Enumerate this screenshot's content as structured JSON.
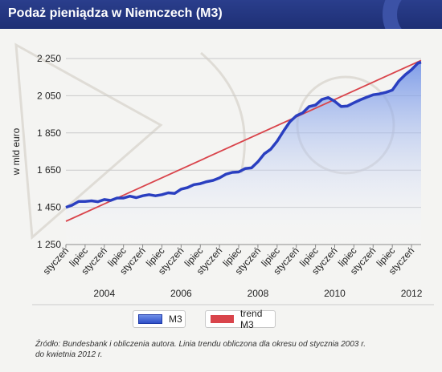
{
  "header": {
    "title": "Podaż pieniądza w Niemczech (M3)"
  },
  "colors": {
    "header_bg": "#25378a",
    "m3_line": "#2a3fc0",
    "m3_fill": "#6b8ee6",
    "trend_line": "#d9444b"
  },
  "chart_data": {
    "type": "line",
    "title": "Podaż pieniądza w Niemczech (M3)",
    "ylabel": "w mld euro",
    "ylim": [
      1250,
      2250
    ],
    "yticks": [
      1250,
      1450,
      1650,
      1850,
      2050,
      2250
    ],
    "ytick_labels": [
      "1 250",
      "1 450",
      "1 650",
      "1 850",
      "2 050",
      "2 250"
    ],
    "xlim": [
      "2003-01",
      "2012-04"
    ],
    "xticks": [
      {
        "x": "2003-01",
        "label": "styczeń"
      },
      {
        "x": "2003-07",
        "label": "lipiec"
      },
      {
        "x": "2004-01",
        "label": "styczeń"
      },
      {
        "x": "2004-07",
        "label": "lipiec"
      },
      {
        "x": "2005-01",
        "label": "styczeń"
      },
      {
        "x": "2005-07",
        "label": "lipiec"
      },
      {
        "x": "2006-01",
        "label": "styczeń"
      },
      {
        "x": "2006-07",
        "label": "lipiec"
      },
      {
        "x": "2007-01",
        "label": "styczeń"
      },
      {
        "x": "2007-07",
        "label": "lipiec"
      },
      {
        "x": "2008-01",
        "label": "styczeń"
      },
      {
        "x": "2008-07",
        "label": "lipiec"
      },
      {
        "x": "2009-01",
        "label": "styczeń"
      },
      {
        "x": "2009-07",
        "label": "lipiec"
      },
      {
        "x": "2010-01",
        "label": "styczeń"
      },
      {
        "x": "2010-07",
        "label": "lipiec"
      },
      {
        "x": "2011-01",
        "label": "styczeń"
      },
      {
        "x": "2011-07",
        "label": "lipiec"
      },
      {
        "x": "2012-01",
        "label": "styczeń"
      }
    ],
    "year_labels": [
      {
        "x": "2004-01",
        "label": "2004"
      },
      {
        "x": "2006-01",
        "label": "2006"
      },
      {
        "x": "2008-01",
        "label": "2008"
      },
      {
        "x": "2010-01",
        "label": "2010"
      },
      {
        "x": "2012-01",
        "label": "2012"
      }
    ],
    "grid": true,
    "legend_position": "bottom",
    "series": [
      {
        "name": "M3",
        "style": "area-line",
        "points": [
          [
            "2003-01",
            1450
          ],
          [
            "2003-03",
            1462
          ],
          [
            "2003-05",
            1482
          ],
          [
            "2003-07",
            1482
          ],
          [
            "2003-09",
            1485
          ],
          [
            "2003-11",
            1480
          ],
          [
            "2004-01",
            1492
          ],
          [
            "2004-03",
            1487
          ],
          [
            "2004-05",
            1500
          ],
          [
            "2004-07",
            1500
          ],
          [
            "2004-09",
            1510
          ],
          [
            "2004-11",
            1502
          ],
          [
            "2005-01",
            1512
          ],
          [
            "2005-03",
            1518
          ],
          [
            "2005-05",
            1512
          ],
          [
            "2005-07",
            1518
          ],
          [
            "2005-09",
            1528
          ],
          [
            "2005-11",
            1525
          ],
          [
            "2006-01",
            1548
          ],
          [
            "2006-03",
            1556
          ],
          [
            "2006-05",
            1572
          ],
          [
            "2006-07",
            1577
          ],
          [
            "2006-09",
            1588
          ],
          [
            "2006-11",
            1595
          ],
          [
            "2007-01",
            1608
          ],
          [
            "2007-03",
            1628
          ],
          [
            "2007-05",
            1638
          ],
          [
            "2007-07",
            1640
          ],
          [
            "2007-09",
            1658
          ],
          [
            "2007-11",
            1662
          ],
          [
            "2008-01",
            1695
          ],
          [
            "2008-03",
            1738
          ],
          [
            "2008-05",
            1762
          ],
          [
            "2008-07",
            1805
          ],
          [
            "2008-09",
            1860
          ],
          [
            "2008-11",
            1910
          ],
          [
            "2009-01",
            1942
          ],
          [
            "2009-03",
            1958
          ],
          [
            "2009-05",
            1992
          ],
          [
            "2009-07",
            2000
          ],
          [
            "2009-09",
            2030
          ],
          [
            "2009-11",
            2040
          ],
          [
            "2010-01",
            2020
          ],
          [
            "2010-03",
            1992
          ],
          [
            "2010-05",
            1995
          ],
          [
            "2010-07",
            2012
          ],
          [
            "2010-09",
            2028
          ],
          [
            "2010-11",
            2042
          ],
          [
            "2011-01",
            2055
          ],
          [
            "2011-03",
            2060
          ],
          [
            "2011-05",
            2068
          ],
          [
            "2011-07",
            2080
          ],
          [
            "2011-09",
            2128
          ],
          [
            "2011-11",
            2162
          ],
          [
            "2012-01",
            2190
          ],
          [
            "2012-03",
            2225
          ],
          [
            "2012-04",
            2230
          ]
        ]
      },
      {
        "name": "trend M3",
        "style": "line",
        "points": [
          [
            "2003-01",
            1375
          ],
          [
            "2012-04",
            2240
          ]
        ]
      }
    ]
  },
  "legend": {
    "m3_label": "M3",
    "trend_label": "trend M3"
  },
  "source": {
    "line1": "Źródło: Bundesbank i obliczenia autora. Linia trendu obliczona dla okresu od stycznia 2003 r.",
    "line2": "do kwietnia 2012 r."
  }
}
